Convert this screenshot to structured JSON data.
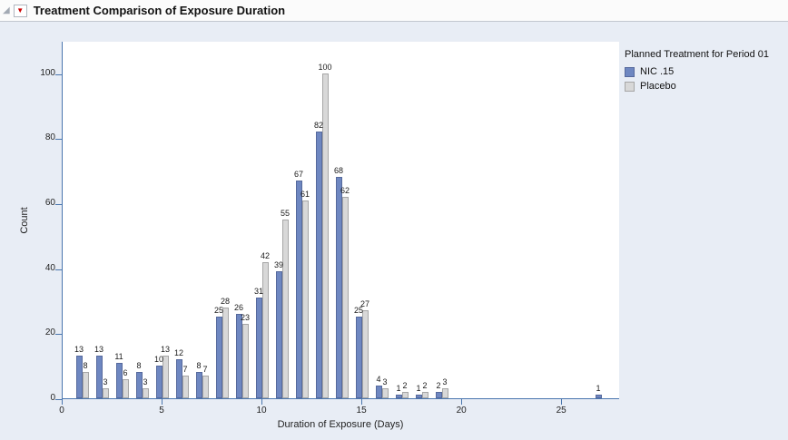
{
  "title_bar": {
    "title": "Treatment Comparison of Exposure Duration",
    "disclosure_icon": "◢",
    "menu_icon": "▼"
  },
  "chart_data": {
    "type": "bar",
    "title": "Treatment Comparison of Exposure Duration",
    "xlabel": "Duration of Exposure (Days)",
    "ylabel": "Count",
    "xlim": [
      0,
      27.9
    ],
    "ylim": [
      0,
      110
    ],
    "x_ticks": [
      0,
      5,
      10,
      15,
      20,
      25
    ],
    "y_ticks": [
      0,
      20,
      40,
      60,
      80,
      100
    ],
    "grid": false,
    "legend_position": "right",
    "legend_title": "Planned Treatment for Period 01",
    "series": [
      {
        "name": "NIC .15",
        "color": "#6e87c1",
        "border_color": "#56699c",
        "x": [
          1,
          2,
          3,
          4,
          5,
          6,
          7,
          8,
          9,
          10,
          11,
          12,
          13,
          14,
          15,
          16,
          17,
          18,
          19,
          27
        ],
        "values": [
          13,
          13,
          11,
          8,
          10,
          12,
          8,
          25,
          26,
          31,
          39,
          67,
          82,
          68,
          25,
          4,
          1,
          1,
          2,
          1
        ]
      },
      {
        "name": "Placebo",
        "color": "#d8d8d8",
        "border_color": "#a6a6a6",
        "x": [
          1,
          2,
          3,
          4,
          5,
          6,
          7,
          8,
          9,
          10,
          11,
          12,
          13,
          14,
          15,
          16,
          17,
          18,
          19
        ],
        "values": [
          8,
          3,
          6,
          3,
          13,
          7,
          7,
          28,
          23,
          42,
          55,
          61,
          100,
          62,
          27,
          3,
          2,
          2,
          3
        ]
      }
    ],
    "colors": {
      "axis": "#4a76ae",
      "plot_background": "#ffffff",
      "window_background": "#e8edf5",
      "value_label_text": "#1a1a1a"
    }
  }
}
